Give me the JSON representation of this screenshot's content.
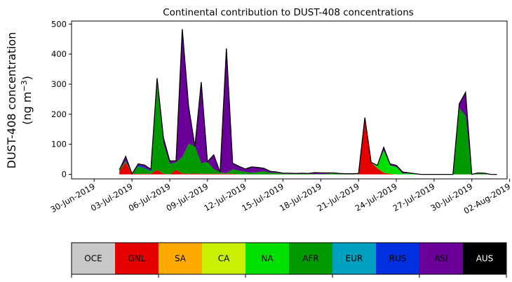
{
  "chart_data": {
    "type": "area",
    "stacked": true,
    "title": "Continental contribution to DUST-408 concentrations",
    "ylabel_line1": "DUST-408 concentration",
    "ylabel_line2_prefix": "(ng m",
    "ylabel_line2_sup": "−3",
    "ylabel_line2_suffix": ")",
    "xlabel": "",
    "ylim": [
      -15,
      510
    ],
    "yticks": [
      0,
      100,
      200,
      300,
      400,
      500
    ],
    "xlim": [
      -2.8,
      31.8
    ],
    "xtick_positions": [
      -1,
      2,
      5,
      8,
      11,
      14,
      17,
      20,
      23,
      26,
      29,
      32
    ],
    "xtick_labels": [
      "30-Jun-2019",
      "03-Jul-2019",
      "06-Jul-2019",
      "09-Jul-2019",
      "12-Jul-2019",
      "15-Jul-2019",
      "18-Jul-2019",
      "21-Jul-2019",
      "24-Jul-2019",
      "27-Jul-2019",
      "30-Jul-2019",
      "02-Aug-2019"
    ],
    "x": [
      1,
      1.5,
      2,
      2.5,
      3,
      3.5,
      4,
      4.5,
      5,
      5.5,
      6,
      6.5,
      7,
      7.5,
      8,
      8.5,
      9,
      9.5,
      10,
      10.5,
      11,
      11.5,
      12,
      12.5,
      13,
      13.5,
      14,
      14.5,
      15,
      15.5,
      16,
      16.5,
      17,
      17.5,
      18,
      18.5,
      19,
      19.5,
      20,
      20.5,
      21,
      21.5,
      22,
      22.5,
      23,
      23.5,
      24,
      24.5,
      25,
      25.5,
      26,
      26.5,
      27,
      27.5,
      28,
      28.5,
      29,
      29.5,
      30,
      30.5,
      31
    ],
    "series": [
      {
        "name": "OCE",
        "color": "#c8c8c8",
        "values": [
          0,
          0,
          0,
          0,
          0,
          0,
          0,
          0,
          0,
          0,
          0,
          0,
          0,
          0,
          0,
          0,
          0,
          0,
          0,
          0,
          0,
          0,
          0,
          0,
          0,
          0,
          0,
          0,
          0,
          0,
          0,
          0,
          0,
          0,
          0,
          0,
          0,
          0,
          0,
          0,
          0,
          0,
          0,
          0,
          0,
          0,
          0,
          0,
          0,
          0,
          0,
          0,
          0,
          0,
          0,
          0,
          0,
          0,
          0,
          0,
          0
        ]
      },
      {
        "name": "GNL",
        "color": "#e60000",
        "values": [
          10,
          40,
          2,
          2,
          2,
          2,
          15,
          2,
          0,
          15,
          3,
          2,
          3,
          2,
          2,
          2,
          2,
          2,
          2,
          0,
          0,
          0,
          0,
          0,
          0,
          0,
          0,
          0,
          0,
          0,
          0,
          0,
          0,
          0,
          0,
          0,
          0,
          0,
          0,
          185,
          40,
          20,
          5,
          2,
          0,
          0,
          0,
          0,
          0,
          0,
          0,
          0,
          0,
          0,
          0,
          0,
          0,
          0,
          0,
          0,
          0
        ]
      },
      {
        "name": "SA",
        "color": "#ffaa00",
        "values": [
          0,
          0,
          0,
          0,
          0,
          0,
          0,
          0,
          0,
          0,
          0,
          0,
          0,
          0,
          0,
          0,
          0,
          0,
          0,
          0,
          0,
          0,
          0,
          0,
          0,
          0,
          0,
          0,
          0,
          0,
          0,
          0,
          0,
          0,
          0,
          0,
          0,
          0,
          0,
          0,
          0,
          0,
          0,
          0,
          0,
          0,
          0,
          0,
          0,
          0,
          0,
          0,
          0,
          0,
          0,
          0,
          0,
          0,
          0,
          0,
          0
        ]
      },
      {
        "name": "CA",
        "color": "#c8f000",
        "values": [
          0,
          0,
          0,
          0,
          0,
          0,
          0,
          0,
          0,
          0,
          0,
          0,
          0,
          0,
          0,
          0,
          0,
          0,
          0,
          0,
          0,
          0,
          0,
          0,
          0,
          0,
          0,
          0,
          0,
          0,
          0,
          0,
          0,
          0,
          0,
          0,
          0,
          0,
          0,
          0,
          0,
          0,
          0,
          0,
          0,
          0,
          0,
          0,
          0,
          0,
          0,
          0,
          0,
          0,
          0,
          0,
          0,
          0,
          0,
          0,
          0
        ]
      },
      {
        "name": "NA",
        "color": "#00e000",
        "values": [
          0,
          0,
          0,
          0,
          0,
          0,
          0,
          0,
          0,
          0,
          0,
          0,
          0,
          0,
          0,
          0,
          0,
          0,
          0,
          0,
          0,
          0,
          0,
          0,
          0,
          0,
          0,
          0,
          0,
          0,
          0,
          0,
          0,
          0,
          0,
          0,
          0,
          0,
          0,
          0,
          0,
          10,
          75,
          28,
          25,
          3,
          3,
          2,
          0,
          0,
          0,
          0,
          0,
          0,
          0,
          0,
          0,
          0,
          0,
          0,
          0
        ]
      },
      {
        "name": "AFR",
        "color": "#009900",
        "values": [
          5,
          5,
          0,
          25,
          18,
          8,
          285,
          100,
          35,
          25,
          55,
          100,
          90,
          35,
          40,
          15,
          5,
          2,
          15,
          12,
          8,
          5,
          8,
          10,
          5,
          5,
          2,
          2,
          1,
          2,
          2,
          1,
          1,
          2,
          4,
          2,
          1,
          1,
          1,
          0,
          0,
          0,
          0,
          0,
          0,
          0,
          0,
          0,
          0,
          0,
          0,
          0,
          0,
          0,
          220,
          195,
          0,
          5,
          2,
          0,
          0
        ]
      },
      {
        "name": "EUR",
        "color": "#00a0c0",
        "values": [
          0,
          0,
          0,
          0,
          0,
          0,
          0,
          0,
          0,
          0,
          0,
          0,
          0,
          0,
          0,
          0,
          0,
          0,
          0,
          0,
          0,
          0,
          0,
          0,
          0,
          0,
          0,
          0,
          0,
          0,
          0,
          0,
          0,
          0,
          0,
          0,
          0,
          0,
          0,
          0,
          0,
          0,
          0,
          0,
          0,
          0,
          0,
          0,
          0,
          0,
          0,
          0,
          0,
          0,
          0,
          0,
          0,
          0,
          0,
          0,
          0
        ]
      },
      {
        "name": "RUS",
        "color": "#0030e0",
        "values": [
          0,
          0,
          0,
          5,
          3,
          2,
          0,
          0,
          0,
          0,
          0,
          0,
          0,
          0,
          0,
          0,
          0,
          0,
          0,
          0,
          0,
          0,
          0,
          0,
          0,
          0,
          0,
          0,
          0,
          0,
          0,
          0,
          0,
          0,
          0,
          0,
          0,
          0,
          0,
          0,
          0,
          0,
          0,
          0,
          0,
          0,
          0,
          0,
          0,
          0,
          0,
          0,
          0,
          0,
          0,
          0,
          0,
          0,
          0,
          0,
          0
        ]
      },
      {
        "name": "ASI",
        "color": "#6a0099",
        "values": [
          0,
          15,
          0,
          3,
          8,
          5,
          20,
          20,
          10,
          5,
          425,
          125,
          0,
          270,
          0,
          48,
          0,
          415,
          20,
          15,
          10,
          20,
          15,
          10,
          5,
          3,
          2,
          2,
          2,
          2,
          1,
          5,
          4,
          3,
          1,
          1,
          1,
          1,
          2,
          4,
          0,
          0,
          10,
          5,
          5,
          5,
          2,
          0,
          0,
          0,
          0,
          0,
          0,
          0,
          15,
          78,
          0,
          0,
          2,
          0,
          0
        ]
      },
      {
        "name": "AUS",
        "color": "#000000",
        "values": [
          0,
          0,
          0,
          0,
          0,
          0,
          0,
          0,
          0,
          0,
          0,
          0,
          0,
          0,
          0,
          0,
          0,
          0,
          0,
          0,
          0,
          0,
          0,
          0,
          0,
          0,
          0,
          0,
          0,
          0,
          0,
          0,
          0,
          0,
          0,
          0,
          0,
          0,
          0,
          0,
          0,
          0,
          0,
          0,
          0,
          0,
          0,
          0,
          0,
          0,
          0,
          0,
          0,
          0,
          0,
          0,
          0,
          0,
          0,
          0,
          0
        ]
      }
    ],
    "legend": {
      "placement": "bottom",
      "items": [
        {
          "label": "OCE",
          "color": "#c8c8c8",
          "text_color": "#000000"
        },
        {
          "label": "GNL",
          "color": "#e60000",
          "text_color": "#000000"
        },
        {
          "label": "SA",
          "color": "#ffaa00",
          "text_color": "#000000"
        },
        {
          "label": "CA",
          "color": "#c8f000",
          "text_color": "#000000"
        },
        {
          "label": "NA",
          "color": "#00e000",
          "text_color": "#000000"
        },
        {
          "label": "AFR",
          "color": "#009900",
          "text_color": "#000000"
        },
        {
          "label": "EUR",
          "color": "#00a0c0",
          "text_color": "#000000"
        },
        {
          "label": "RUS",
          "color": "#0030e0",
          "text_color": "#000000"
        },
        {
          "label": "ASI",
          "color": "#6a0099",
          "text_color": "#000000"
        },
        {
          "label": "AUS",
          "color": "#000000",
          "text_color": "#ffffff"
        }
      ]
    },
    "grid": false
  }
}
